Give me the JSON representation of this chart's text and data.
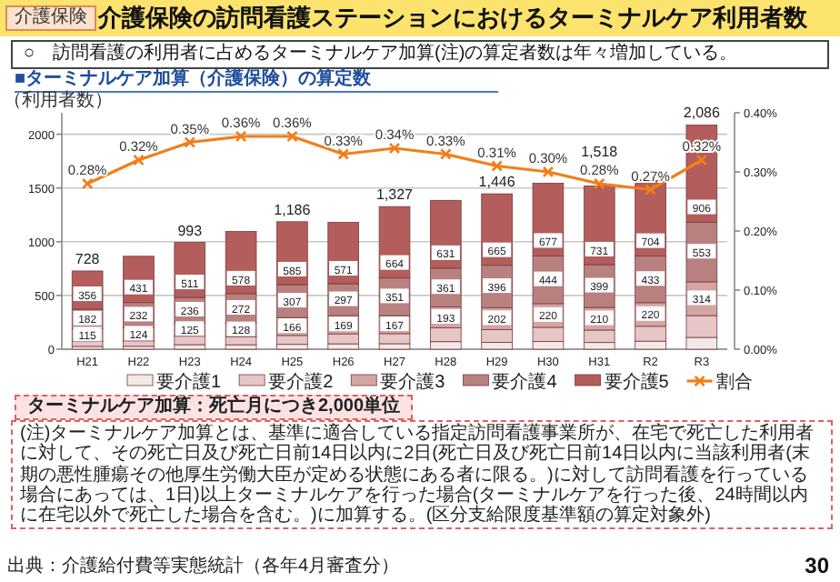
{
  "chart_data": {
    "type": "bar",
    "stacked": true,
    "title": "介護保険の訪問看護ステーションにおけるターミナルケア利用者数",
    "subtitle": "○　訪問看護の利用者に占めるターミナルケア加算(注)の算定者数は年々増加している。",
    "annotations": [
      "介護保険",
      "■ターミナルケア加算（介護保険）の算定数",
      "ターミナルケア加算：死亡月につき2,000単位",
      "(注)ターミナルケア加算とは、基準に適合している指定訪問看護事業所が、在宅で死亡した利用者に対して、その死亡日及び死亡日前14日以内に2日(死亡日及び死亡日前14日以内に当該利用者(末期の悪性腫瘍その他厚生労働大臣が定める状態にある者に限る。)に対して訪問看護を行っている場合にあっては、1日)以上ターミナルケアを行った場合(ターミナルケアを行った後、24時間以内に在宅以外で死亡した場合を含む。)に加算する。(区分支給限度基準額の算定対象外)",
      "出典：介護給付費等実態統計（各年4月審査分）",
      "30"
    ],
    "ylabel": "（利用者数）",
    "categories": [
      "H21",
      "H22",
      "H23",
      "H24",
      "H25",
      "H26",
      "H27",
      "H28",
      "H29",
      "H30",
      "H31",
      "R2",
      "R3"
    ],
    "series": [
      {
        "name": "要介護1",
        "color": "#f3e9e9",
        "values": [
          26,
          27,
          42,
          41,
          45,
          50,
          51,
          70,
          64,
          71,
          62,
          75,
          110
        ]
      },
      {
        "name": "要介護2",
        "color": "#e6c6c6",
        "values": [
          49,
          51,
          79,
          76,
          83,
          93,
          94,
          130,
          119,
          133,
          116,
          138,
          203
        ]
      },
      {
        "name": "要介護3",
        "color": "#d3a5a5",
        "values": [
          115,
          124,
          125,
          128,
          166,
          169,
          167,
          193,
          202,
          220,
          210,
          220,
          314
        ],
        "value_labels": [
          "115",
          "124",
          "125",
          "128",
          "166",
          "169",
          "167",
          "193",
          "202",
          "220",
          "210",
          "220",
          "314"
        ]
      },
      {
        "name": "要介護4",
        "color": "#b98080",
        "values": [
          182,
          232,
          236,
          272,
          307,
          297,
          351,
          361,
          396,
          444,
          399,
          433,
          553
        ],
        "value_labels": [
          "182",
          "232",
          "236",
          "272",
          "307",
          "297",
          "351",
          "361",
          "396",
          "444",
          "399",
          "433",
          "553"
        ]
      },
      {
        "name": "要介護5",
        "color": "#b35d5d",
        "values": [
          356,
          431,
          511,
          578,
          585,
          571,
          664,
          631,
          665,
          677,
          731,
          704,
          906
        ],
        "value_labels": [
          "356",
          "431",
          "511",
          "578",
          "585",
          "571",
          "664",
          "631",
          "665",
          "677",
          "731",
          "704",
          "906"
        ]
      },
      {
        "name": "割合",
        "type": "line",
        "axis": "y2",
        "color": "#f07f1a",
        "marker": "cross",
        "values": [
          0.28,
          0.32,
          0.35,
          0.36,
          0.36,
          0.33,
          0.34,
          0.33,
          0.31,
          0.3,
          0.28,
          0.27,
          0.32
        ],
        "value_labels": [
          "0.28%",
          "0.32%",
          "0.35%",
          "0.36%",
          "0.36%",
          "0.33%",
          "0.34%",
          "0.33%",
          "0.31%",
          "0.30%",
          "0.28%",
          "0.27%",
          "0.32%"
        ]
      }
    ],
    "totals": [
      "728",
      null,
      "993",
      null,
      "1,186",
      null,
      "1,327",
      null,
      "1,446",
      null,
      "1,518",
      null,
      "2,086"
    ],
    "ylim": [
      0,
      2200
    ],
    "yticks": [
      0,
      500,
      1000,
      1500,
      2000
    ],
    "y2lim": [
      0,
      0.4
    ],
    "y2ticks": [
      {
        "value": 0,
        "label": "0.00%"
      },
      {
        "value": 0.1,
        "label": "0.10%"
      },
      {
        "value": 0.2,
        "label": "0.20%"
      },
      {
        "value": 0.3,
        "label": "0.30%"
      },
      {
        "value": 0.4,
        "label": "0.40%"
      }
    ],
    "grid": "y",
    "legend": "bottom"
  }
}
